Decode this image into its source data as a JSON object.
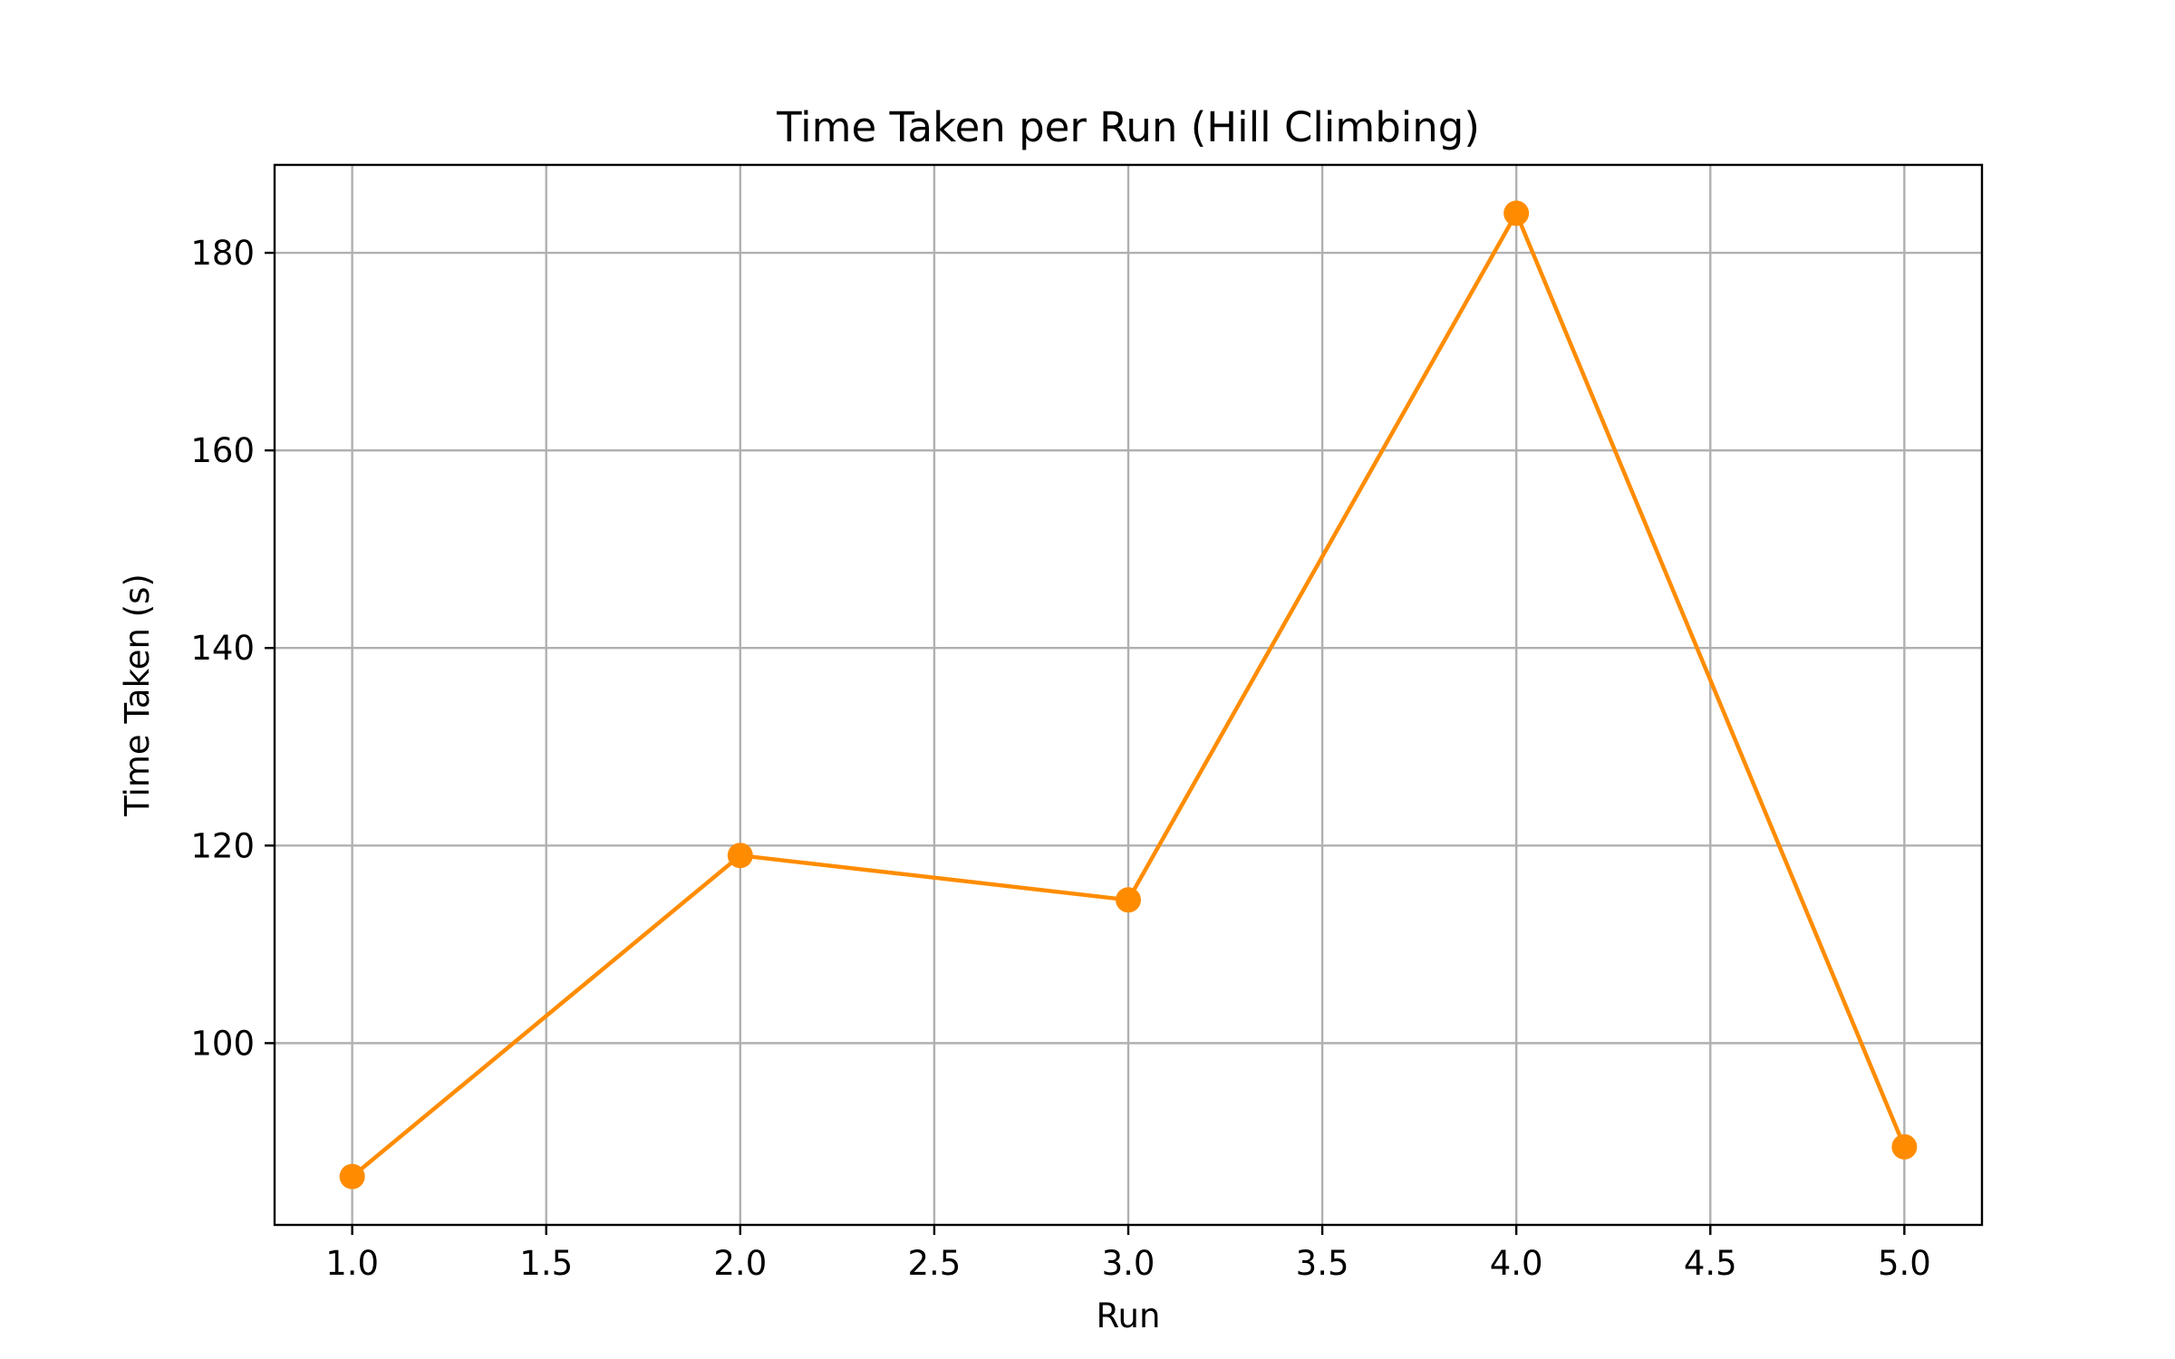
{
  "chart_data": {
    "type": "line",
    "title": "Time Taken per Run (Hill Climbing)",
    "xlabel": "Run",
    "ylabel": "Time Taken (s)",
    "x": [
      1,
      2,
      3,
      4,
      5
    ],
    "series": [
      {
        "values": [
          86.5,
          119.0,
          114.5,
          184.0,
          89.5
        ],
        "color": "#ff8c00",
        "marker": "circle"
      }
    ],
    "xlim": [
      0.8,
      5.2
    ],
    "ylim": [
      81.6,
      188.9
    ],
    "xticks": [
      1.0,
      1.5,
      2.0,
      2.5,
      3.0,
      3.5,
      4.0,
      4.5,
      5.0
    ],
    "xtick_labels": [
      "1.0",
      "1.5",
      "2.0",
      "2.5",
      "3.0",
      "3.5",
      "4.0",
      "4.5",
      "5.0"
    ],
    "yticks": [
      100,
      120,
      140,
      160,
      180
    ],
    "ytick_labels": [
      "100",
      "120",
      "140",
      "160",
      "180"
    ],
    "grid": true,
    "legend": "none"
  }
}
